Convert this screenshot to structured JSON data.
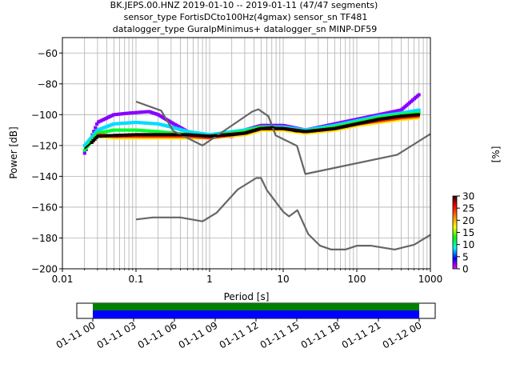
{
  "chart_data": {
    "type": "heatmap",
    "title": [
      "BK.JEPS.00.HNZ   2019-01-10 -- 2019-01-11  (47/47 segments)",
      "sensor_type FortisDCto100Hz(4gmax) sensor_sn TF481",
      "datalogger_type GuralpMinimus+ datalogger_sn MINP-DF59"
    ],
    "xlabel": "Period [s]",
    "ylabel": "Power [dB]",
    "x_scale": "log",
    "xlim": [
      0.01,
      1000
    ],
    "ylim": [
      -200,
      -50
    ],
    "x_ticks": [
      0.01,
      0.1,
      1,
      10,
      100,
      1000
    ],
    "x_tick_labels": [
      "0.01",
      "0.1",
      "1",
      "10",
      "100",
      "1000"
    ],
    "y_ticks": [
      -200,
      -180,
      -160,
      -140,
      -120,
      -100,
      -80,
      -60
    ],
    "y_tick_labels": [
      "−200",
      "−180",
      "−160",
      "−140",
      "−120",
      "−100",
      "−80",
      "−60"
    ],
    "grid": true,
    "colorbar": {
      "label": "[%]",
      "ticks": [
        0,
        5,
        10,
        15,
        20,
        25,
        30
      ],
      "tick_labels": [
        "0",
        "5",
        "10",
        "15",
        "20",
        "25",
        "30"
      ],
      "range": [
        0,
        30
      ],
      "colors": [
        "#ff00ff",
        "#0000ff",
        "#00ffff",
        "#00ff00",
        "#ffff00",
        "#ff8800",
        "#ff0000",
        "#330000"
      ]
    },
    "new_high_noise_model": [
      [
        0.1,
        -91.5
      ],
      [
        0.22,
        -97.4
      ],
      [
        0.32,
        -110.5
      ],
      [
        0.8,
        -120
      ],
      [
        3.8,
        -98
      ],
      [
        4.6,
        -96.5
      ],
      [
        6.3,
        -101
      ],
      [
        7.9,
        -113.5
      ],
      [
        15.4,
        -120.3
      ],
      [
        20,
        -138.5
      ],
      [
        354.8,
        -126
      ],
      [
        1000,
        -112.5
      ]
    ],
    "new_low_noise_model": [
      [
        0.1,
        -168
      ],
      [
        0.17,
        -166.7
      ],
      [
        0.4,
        -166.7
      ],
      [
        0.8,
        -169.2
      ],
      [
        1.24,
        -163.7
      ],
      [
        2.4,
        -148.6
      ],
      [
        4.3,
        -141.1
      ],
      [
        5,
        -141.1
      ],
      [
        6,
        -149
      ],
      [
        10,
        -163
      ],
      [
        12,
        -166
      ],
      [
        15.6,
        -162
      ],
      [
        21.9,
        -177.5
      ],
      [
        31.6,
        -185
      ],
      [
        45,
        -187.5
      ],
      [
        70,
        -187.5
      ],
      [
        101,
        -185
      ],
      [
        154,
        -185
      ],
      [
        328,
        -187.5
      ],
      [
        600,
        -184.4
      ],
      [
        1000,
        -178
      ]
    ],
    "mean_curve": [
      [
        0.02,
        -122
      ],
      [
        0.025,
        -118
      ],
      [
        0.03,
        -114
      ],
      [
        0.05,
        -113
      ],
      [
        0.1,
        -113
      ],
      [
        0.2,
        -113
      ],
      [
        0.5,
        -113.5
      ],
      [
        1,
        -114
      ],
      [
        2,
        -113.5
      ],
      [
        3,
        -112
      ],
      [
        5,
        -108.5
      ],
      [
        7,
        -108
      ],
      [
        10,
        -109
      ],
      [
        15,
        -111
      ],
      [
        20,
        -111
      ],
      [
        50,
        -109
      ],
      [
        100,
        -106
      ],
      [
        200,
        -103
      ],
      [
        400,
        -101
      ],
      [
        700,
        -100
      ]
    ],
    "heatmap_rows": [
      {
        "percent": 2,
        "points": [
          [
            0.02,
            -125
          ],
          [
            0.03,
            -105
          ],
          [
            0.05,
            -100
          ],
          [
            0.08,
            -99
          ],
          [
            0.15,
            -98
          ],
          [
            0.2,
            -100
          ],
          [
            0.3,
            -105
          ],
          [
            0.5,
            -111
          ],
          [
            1,
            -114
          ],
          [
            2,
            -114
          ],
          [
            3,
            -110
          ],
          [
            5,
            -107
          ],
          [
            10,
            -107
          ],
          [
            20,
            -110
          ],
          [
            50,
            -106
          ],
          [
            100,
            -103
          ],
          [
            200,
            -100
          ],
          [
            400,
            -97
          ],
          [
            700,
            -87
          ]
        ]
      },
      {
        "percent": 8,
        "points": [
          [
            0.02,
            -120
          ],
          [
            0.03,
            -110
          ],
          [
            0.05,
            -106
          ],
          [
            0.1,
            -105
          ],
          [
            0.2,
            -106
          ],
          [
            0.3,
            -108
          ],
          [
            0.5,
            -111
          ],
          [
            1,
            -113
          ],
          [
            3,
            -110
          ],
          [
            5,
            -108
          ],
          [
            10,
            -108
          ],
          [
            20,
            -110
          ],
          [
            50,
            -107
          ],
          [
            100,
            -104
          ],
          [
            200,
            -101
          ],
          [
            400,
            -99
          ],
          [
            700,
            -97
          ]
        ]
      },
      {
        "percent": 12,
        "points": [
          [
            0.02,
            -123
          ],
          [
            0.03,
            -112
          ],
          [
            0.05,
            -110
          ],
          [
            0.1,
            -110
          ],
          [
            0.2,
            -111
          ],
          [
            0.5,
            -113
          ],
          [
            1,
            -114
          ],
          [
            3,
            -111
          ],
          [
            5,
            -108
          ],
          [
            10,
            -109
          ],
          [
            20,
            -111
          ],
          [
            50,
            -108
          ],
          [
            100,
            -105
          ],
          [
            200,
            -102
          ],
          [
            400,
            -100
          ],
          [
            700,
            -99
          ]
        ]
      },
      {
        "percent": 18,
        "points": [
          [
            0.03,
            -114
          ],
          [
            0.05,
            -115
          ],
          [
            0.1,
            -115
          ],
          [
            0.2,
            -115
          ],
          [
            0.5,
            -115
          ],
          [
            1,
            -115
          ],
          [
            3,
            -113
          ],
          [
            5,
            -110
          ],
          [
            10,
            -110
          ],
          [
            20,
            -112
          ],
          [
            50,
            -110
          ],
          [
            100,
            -107
          ],
          [
            200,
            -105
          ],
          [
            400,
            -103
          ],
          [
            700,
            -102
          ]
        ]
      },
      {
        "percent": 24,
        "points": [
          [
            0.03,
            -113
          ],
          [
            0.05,
            -114
          ],
          [
            0.1,
            -114
          ],
          [
            0.2,
            -114
          ],
          [
            0.5,
            -114
          ],
          [
            1,
            -115
          ],
          [
            3,
            -112
          ],
          [
            5,
            -109
          ],
          [
            10,
            -109
          ],
          [
            20,
            -111
          ],
          [
            50,
            -109
          ],
          [
            100,
            -106
          ],
          [
            200,
            -104
          ],
          [
            400,
            -102
          ],
          [
            700,
            -101
          ]
        ]
      },
      {
        "percent": 30,
        "points": [
          [
            0.025,
            -118
          ],
          [
            0.03,
            -114
          ],
          [
            0.1,
            -113
          ],
          [
            0.5,
            -113
          ],
          [
            1,
            -114
          ],
          [
            3,
            -112
          ],
          [
            5,
            -109
          ],
          [
            10,
            -109
          ],
          [
            20,
            -111
          ],
          [
            50,
            -109
          ],
          [
            100,
            -106
          ],
          [
            200,
            -103
          ],
          [
            400,
            -101
          ],
          [
            700,
            -100
          ]
        ]
      }
    ],
    "segments_timeline": {
      "ticks": [
        "01-11 00",
        "01-11 03",
        "01-11 06",
        "01-11 09",
        "01-11 12",
        "01-11 15",
        "01-11 18",
        "01-11 21",
        "01-12 00"
      ],
      "bars": [
        {
          "color": "#008000"
        },
        {
          "color": "#0000ff"
        }
      ]
    }
  }
}
